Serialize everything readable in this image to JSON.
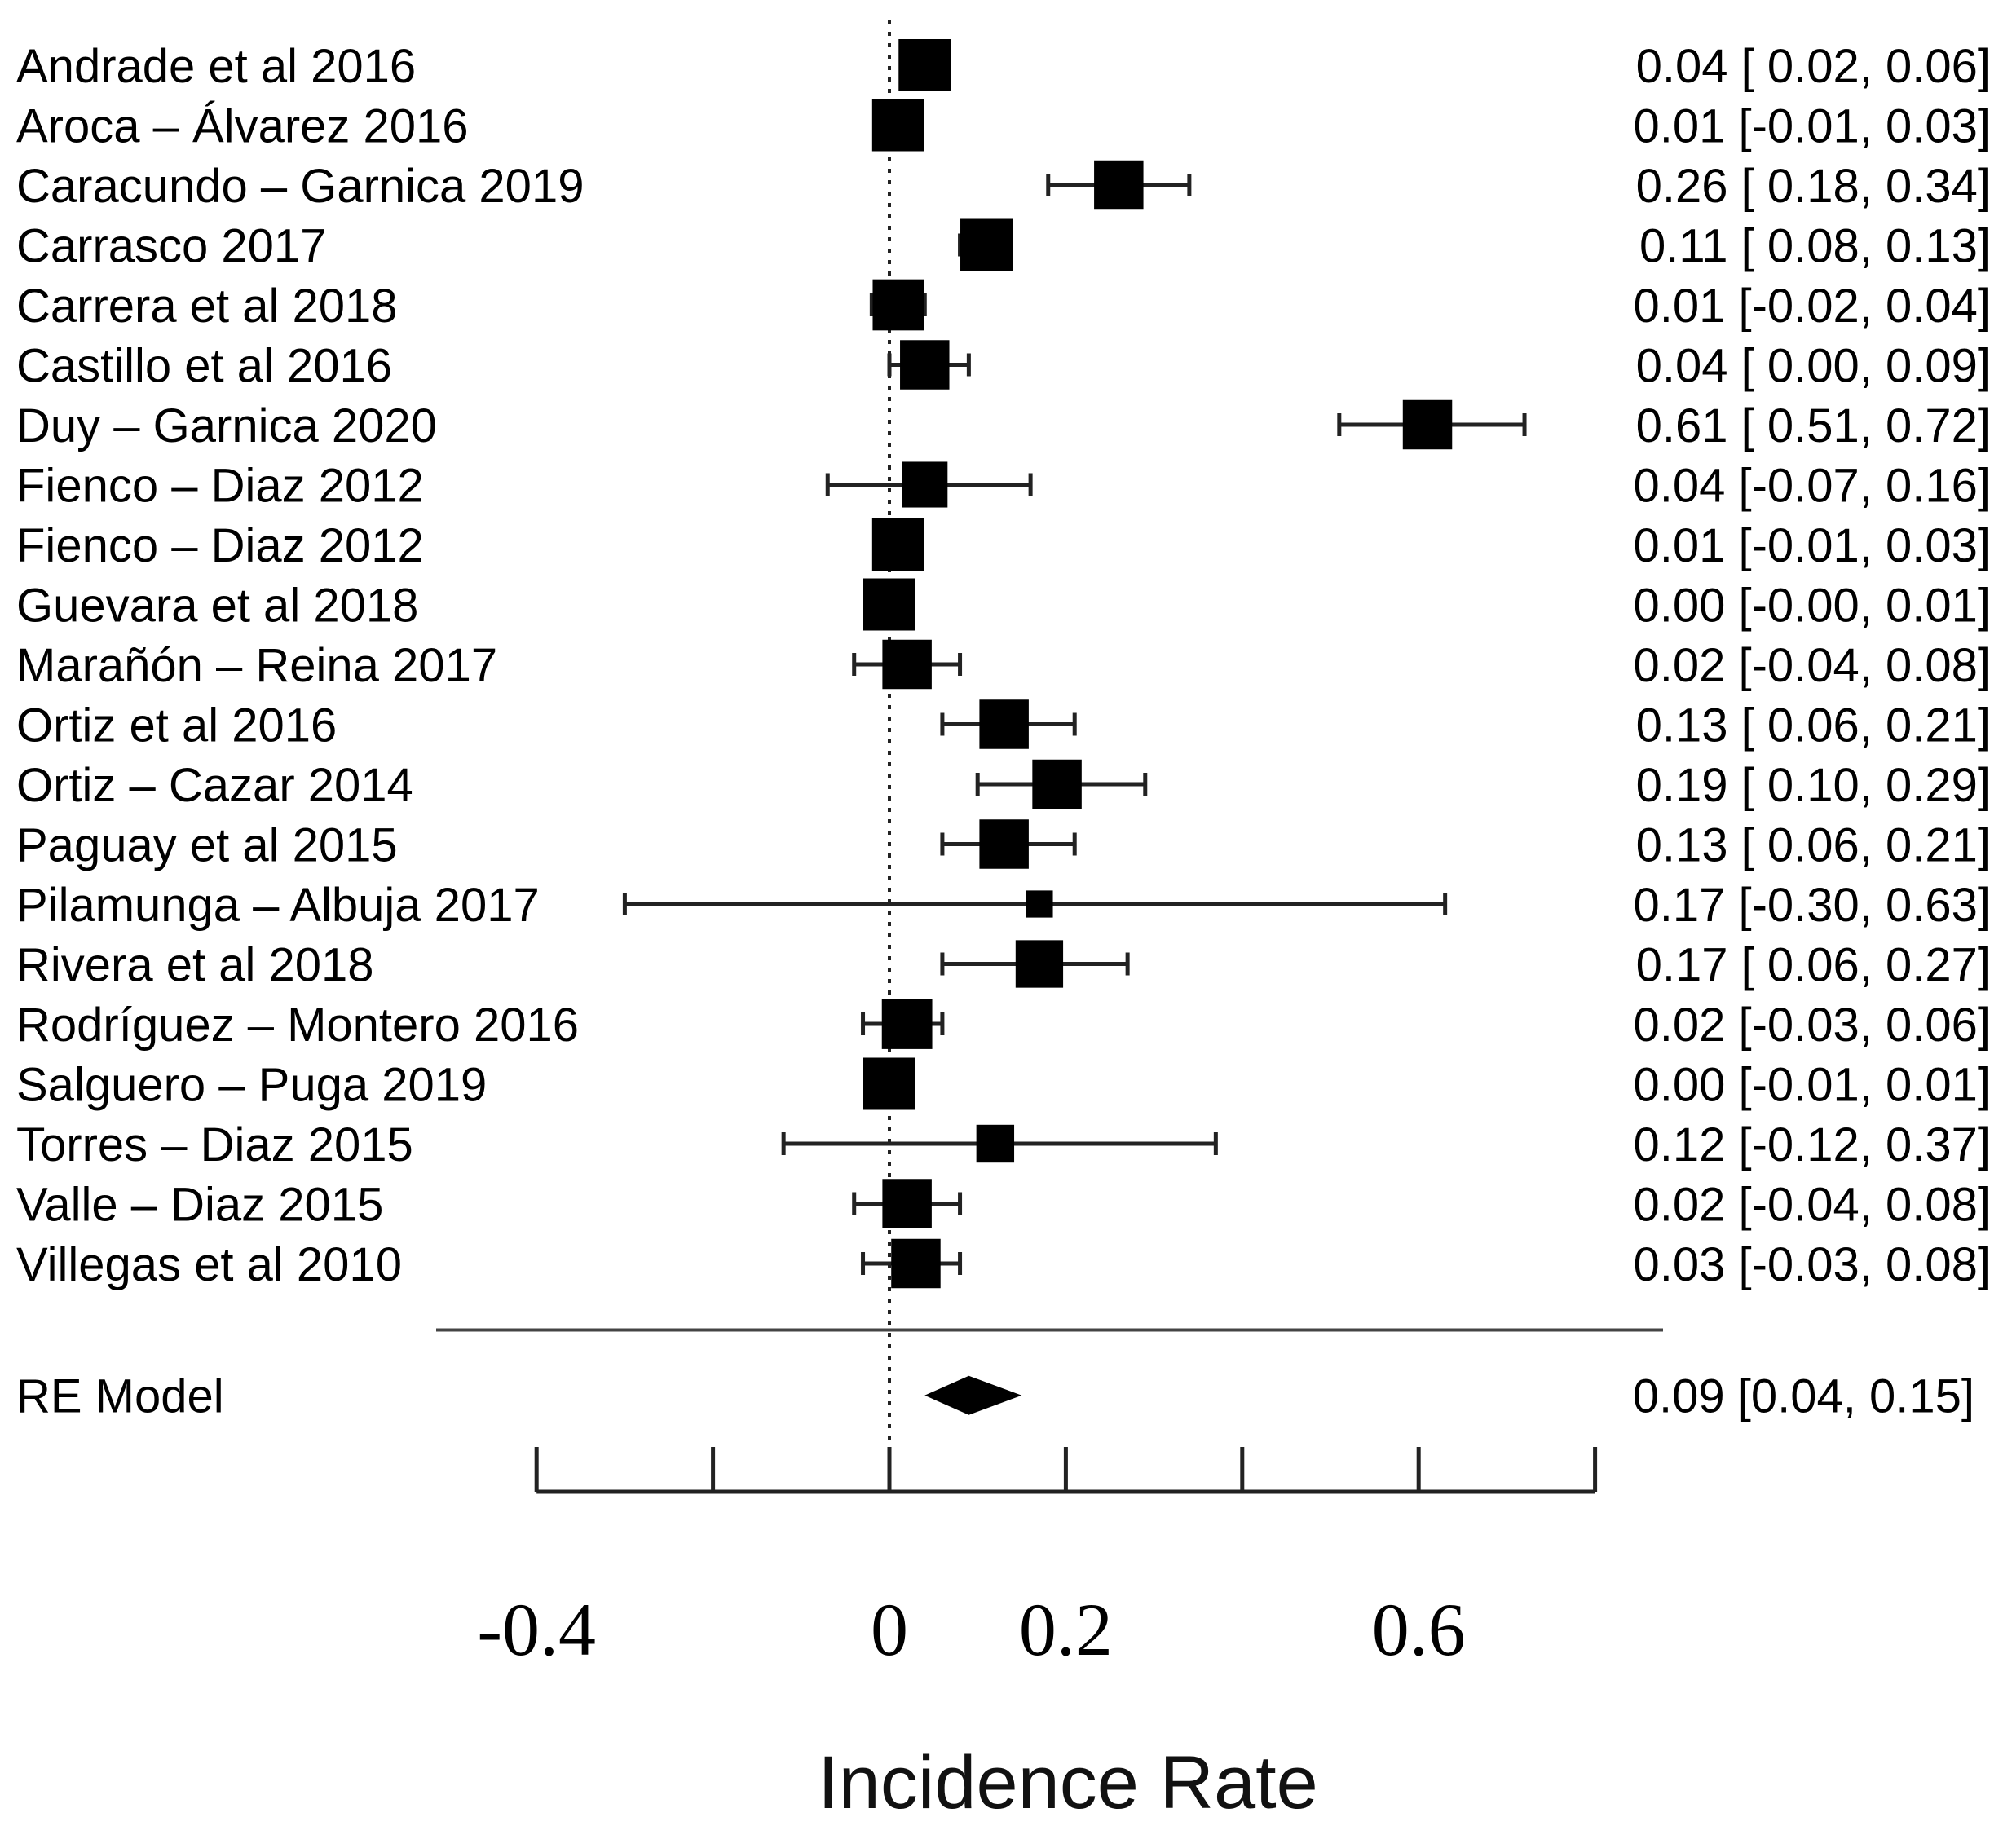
{
  "chart_data": {
    "type": "forest",
    "xlabel": "Incidence Rate",
    "xlim": [
      -0.4,
      0.8
    ],
    "ticks": [
      -0.4,
      -0.2,
      0,
      0.2,
      0.4,
      0.6,
      0.8
    ],
    "tick_labels": [
      {
        "value": -0.4,
        "label": "-0.4"
      },
      {
        "value": 0,
        "label": "0"
      },
      {
        "value": 0.2,
        "label": "0.2"
      },
      {
        "value": 0.6,
        "label": "0.6"
      }
    ],
    "reference_line": 0,
    "studies": [
      {
        "name": "Andrade et al 2016",
        "est": 0.04,
        "lo": 0.02,
        "hi": 0.06,
        "ci_text": "0.04 [ 0.02, 0.06]",
        "weight": 1.0
      },
      {
        "name": "Aroca – Álvarez 2016",
        "est": 0.01,
        "lo": -0.01,
        "hi": 0.03,
        "ci_text": "0.01 [-0.01, 0.03]",
        "weight": 1.0
      },
      {
        "name": "Caracundo – Garnica 2019",
        "est": 0.26,
        "lo": 0.18,
        "hi": 0.34,
        "ci_text": "0.26 [ 0.18, 0.34]",
        "weight": 0.92
      },
      {
        "name": "Carrasco 2017",
        "est": 0.11,
        "lo": 0.08,
        "hi": 0.13,
        "ci_text": "0.11 [ 0.08, 0.13]",
        "weight": 1.0
      },
      {
        "name": "Carrera et al 2018",
        "est": 0.01,
        "lo": -0.02,
        "hi": 0.04,
        "ci_text": "0.01 [-0.02, 0.04]",
        "weight": 0.97
      },
      {
        "name": "Castillo et al 2016",
        "est": 0.04,
        "lo": 0.0,
        "hi": 0.09,
        "ci_text": "0.04 [ 0.00, 0.09]",
        "weight": 0.92
      },
      {
        "name": "Duy – Garnica 2020",
        "est": 0.61,
        "lo": 0.51,
        "hi": 0.72,
        "ci_text": "0.61 [ 0.51, 0.72]",
        "weight": 0.92
      },
      {
        "name": "Fienco – Diaz 2012",
        "est": 0.04,
        "lo": -0.07,
        "hi": 0.16,
        "ci_text": "0.04 [-0.07, 0.16]",
        "weight": 0.82
      },
      {
        "name": "Fienco – Diaz 2012",
        "est": 0.01,
        "lo": -0.01,
        "hi": 0.03,
        "ci_text": "0.01 [-0.01, 0.03]",
        "weight": 1.0
      },
      {
        "name": "Guevara et al 2018",
        "est": 0.0,
        "lo": -0.0,
        "hi": 0.01,
        "ci_text": "0.00 [-0.00, 0.01]",
        "weight": 1.0
      },
      {
        "name": "Marañón – Reina 2017",
        "est": 0.02,
        "lo": -0.04,
        "hi": 0.08,
        "ci_text": "0.02 [-0.04, 0.08]",
        "weight": 0.92
      },
      {
        "name": "Ortiz et al 2016",
        "est": 0.13,
        "lo": 0.06,
        "hi": 0.21,
        "ci_text": "0.13 [ 0.06, 0.21]",
        "weight": 0.92
      },
      {
        "name": "Ortiz – Cazar 2014",
        "est": 0.19,
        "lo": 0.1,
        "hi": 0.29,
        "ci_text": "0.19 [ 0.10, 0.29]",
        "weight": 0.92
      },
      {
        "name": "Paguay et al 2015",
        "est": 0.13,
        "lo": 0.06,
        "hi": 0.21,
        "ci_text": "0.13 [ 0.06, 0.21]",
        "weight": 0.92
      },
      {
        "name": "Pilamunga – Albuja 2017",
        "est": 0.17,
        "lo": -0.3,
        "hi": 0.63,
        "ci_text": "0.17 [-0.30, 0.63]",
        "weight": 0.3
      },
      {
        "name": "Rivera et al 2018",
        "est": 0.17,
        "lo": 0.06,
        "hi": 0.27,
        "ci_text": "0.17 [ 0.06, 0.27]",
        "weight": 0.87
      },
      {
        "name": "Rodríguez – Montero 2016",
        "est": 0.02,
        "lo": -0.03,
        "hi": 0.06,
        "ci_text": "0.02 [-0.03, 0.06]",
        "weight": 0.95
      },
      {
        "name": "Salguero – Puga 2019",
        "est": 0.0,
        "lo": -0.01,
        "hi": 0.01,
        "ci_text": "0.00 [-0.01, 0.01]",
        "weight": 1.0
      },
      {
        "name": "Torres – Diaz 2015",
        "est": 0.12,
        "lo": -0.12,
        "hi": 0.37,
        "ci_text": "0.12 [-0.12, 0.37]",
        "weight": 0.6
      },
      {
        "name": "Valle – Diaz 2015",
        "est": 0.02,
        "lo": -0.04,
        "hi": 0.08,
        "ci_text": "0.02 [-0.04, 0.08]",
        "weight": 0.92
      },
      {
        "name": "Villegas et al 2010",
        "est": 0.03,
        "lo": -0.03,
        "hi": 0.08,
        "ci_text": "0.03 [-0.03, 0.08]",
        "weight": 0.92
      }
    ],
    "pooled": {
      "name": "RE Model",
      "est": 0.09,
      "lo": 0.04,
      "hi": 0.15,
      "ci_text": "0.09 [0.04, 0.15]"
    }
  }
}
